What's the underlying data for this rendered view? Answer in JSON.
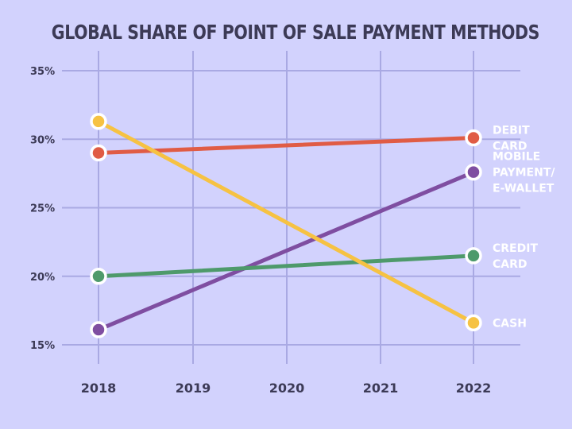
{
  "chart_data": {
    "type": "line",
    "title": "GLOBAL SHARE OF POINT OF SALE PAYMENT METHODS",
    "xlabel": "",
    "ylabel": "",
    "categories": [
      "2018",
      "2019",
      "2020",
      "2021",
      "2022"
    ],
    "x": [
      2018,
      2022
    ],
    "ylim": [
      15,
      35
    ],
    "yticks": [
      35,
      30,
      25,
      20,
      15
    ],
    "ytick_format": "%",
    "grid": true,
    "legend_placement": "right, inline at line ends",
    "series": [
      {
        "name": "DEBIT CARD",
        "label_lines": [
          "DEBIT",
          "CARD"
        ],
        "color": "#e05c45",
        "values": [
          29.0,
          30.1
        ]
      },
      {
        "name": "MOBILE PAYMENT/ E-WALLET",
        "label_lines": [
          "MOBILE",
          "PAYMENT/",
          "E-WALLET"
        ],
        "color": "#7f4ea1",
        "values": [
          16.1,
          27.6
        ]
      },
      {
        "name": "CREDIT CARD",
        "label_lines": [
          "CREDIT",
          "CARD"
        ],
        "color": "#4e9a6b",
        "values": [
          20.0,
          21.5
        ]
      },
      {
        "name": "CASH",
        "label_lines": [
          "CASH"
        ],
        "color": "#f6c243",
        "values": [
          31.3,
          16.6
        ]
      }
    ]
  }
}
